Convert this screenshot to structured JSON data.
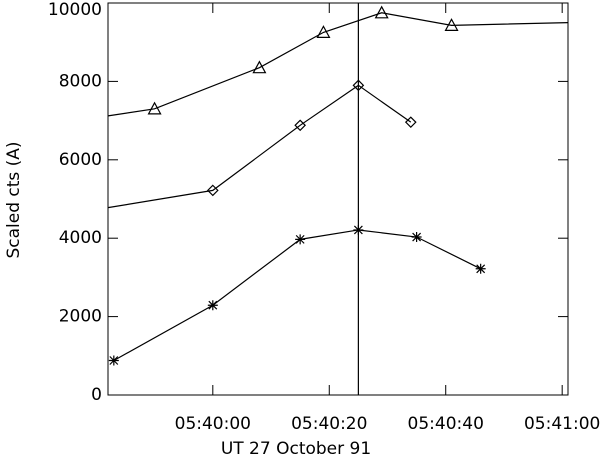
{
  "chart_data": {
    "type": "line",
    "xlabel": "UT 27 October 91",
    "ylabel": "Scaled cts (A)",
    "xlim": [
      "05:39:42",
      "05:41:01"
    ],
    "xticks": [
      "05:40:00",
      "05:40:20",
      "05:40:40",
      "05:41:00"
    ],
    "ylim": [
      0,
      10000
    ],
    "yticks": [
      0,
      2000,
      4000,
      6000,
      8000,
      10000
    ],
    "vline": "05:40:25",
    "series": [
      {
        "marker": "triangle",
        "color": "#000000",
        "x": [
          "05:39:42",
          "05:39:50",
          "05:40:08",
          "05:40:19",
          "05:40:29",
          "05:40:41",
          "05:41:01"
        ],
        "values": [
          7120,
          7300,
          8350,
          9250,
          9750,
          9430,
          9500
        ]
      },
      {
        "marker": "diamond",
        "color": "#000000",
        "x": [
          "05:39:42",
          "05:40:00",
          "05:40:15",
          "05:40:25",
          "05:40:34"
        ],
        "values": [
          4780,
          5220,
          6880,
          7900,
          6960
        ]
      },
      {
        "marker": "star",
        "color": "#000000",
        "x": [
          "05:39:43",
          "05:40:00",
          "05:40:15",
          "05:40:25",
          "05:40:35",
          "05:40:46"
        ],
        "values": [
          880,
          2290,
          3970,
          4210,
          4030,
          3220
        ]
      }
    ]
  }
}
